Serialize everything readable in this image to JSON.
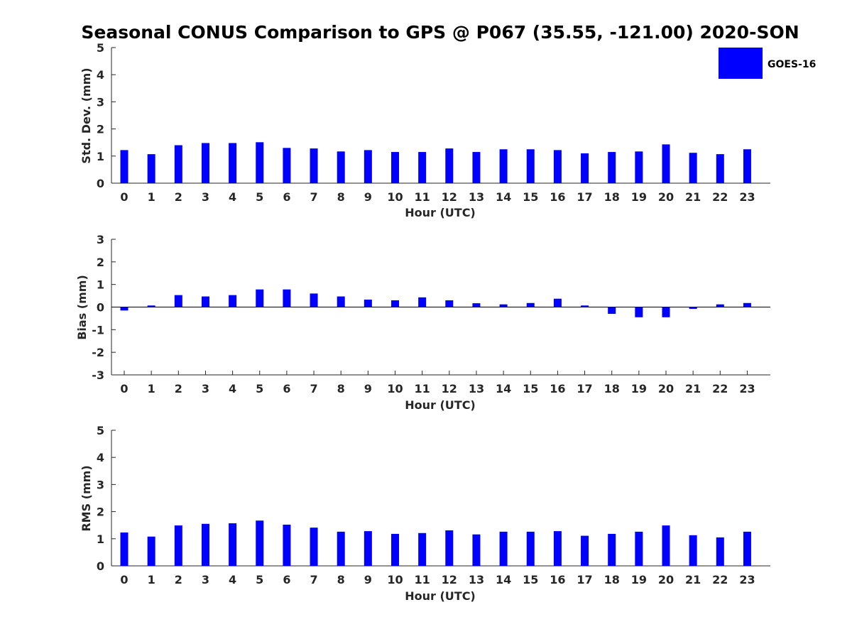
{
  "chart_data": [
    {
      "type": "bar",
      "title": "Seasonal CONUS Comparison to GPS @ P067 (35.55, -121.00) 2020-SON",
      "xlabel": "Hour (UTC)",
      "ylabel": "Std. Dev. (mm)",
      "ylim": [
        0,
        5
      ],
      "yticks": [
        0,
        1,
        2,
        3,
        4,
        5
      ],
      "categories": [
        "0",
        "1",
        "2",
        "3",
        "4",
        "5",
        "6",
        "7",
        "8",
        "9",
        "10",
        "11",
        "12",
        "13",
        "14",
        "15",
        "16",
        "17",
        "18",
        "19",
        "20",
        "21",
        "22",
        "23"
      ],
      "series": [
        {
          "name": "GOES-16",
          "color": "#0000ff",
          "values": [
            1.22,
            1.07,
            1.4,
            1.48,
            1.48,
            1.51,
            1.3,
            1.28,
            1.17,
            1.22,
            1.15,
            1.15,
            1.28,
            1.15,
            1.25,
            1.25,
            1.22,
            1.1,
            1.15,
            1.17,
            1.43,
            1.12,
            1.07,
            1.25
          ]
        }
      ],
      "legend": {
        "position": "top-right",
        "entries": [
          "GOES-16"
        ]
      }
    },
    {
      "type": "bar",
      "title": "",
      "xlabel": "Hour (UTC)",
      "ylabel": "Bias (mm)",
      "ylim": [
        -3,
        3
      ],
      "yticks": [
        -3,
        -2,
        -1,
        0,
        1,
        2,
        3
      ],
      "categories": [
        "0",
        "1",
        "2",
        "3",
        "4",
        "5",
        "6",
        "7",
        "8",
        "9",
        "10",
        "11",
        "12",
        "13",
        "14",
        "15",
        "16",
        "17",
        "18",
        "19",
        "20",
        "21",
        "22",
        "23"
      ],
      "series": [
        {
          "name": "GOES-16",
          "color": "#0000ff",
          "values": [
            -0.15,
            0.07,
            0.53,
            0.47,
            0.53,
            0.78,
            0.78,
            0.6,
            0.47,
            0.33,
            0.3,
            0.43,
            0.3,
            0.17,
            0.12,
            0.18,
            0.37,
            0.07,
            -0.3,
            -0.45,
            -0.45,
            -0.08,
            0.12,
            0.18
          ]
        }
      ]
    },
    {
      "type": "bar",
      "title": "",
      "xlabel": "Hour (UTC)",
      "ylabel": "RMS (mm)",
      "ylim": [
        0,
        5
      ],
      "yticks": [
        0,
        1,
        2,
        3,
        4,
        5
      ],
      "categories": [
        "0",
        "1",
        "2",
        "3",
        "4",
        "5",
        "6",
        "7",
        "8",
        "9",
        "10",
        "11",
        "12",
        "13",
        "14",
        "15",
        "16",
        "17",
        "18",
        "19",
        "20",
        "21",
        "22",
        "23"
      ],
      "series": [
        {
          "name": "GOES-16",
          "color": "#0000ff",
          "values": [
            1.23,
            1.08,
            1.49,
            1.55,
            1.57,
            1.67,
            1.52,
            1.41,
            1.26,
            1.28,
            1.18,
            1.21,
            1.31,
            1.16,
            1.26,
            1.26,
            1.28,
            1.11,
            1.18,
            1.26,
            1.49,
            1.13,
            1.05,
            1.26
          ]
        }
      ]
    }
  ]
}
